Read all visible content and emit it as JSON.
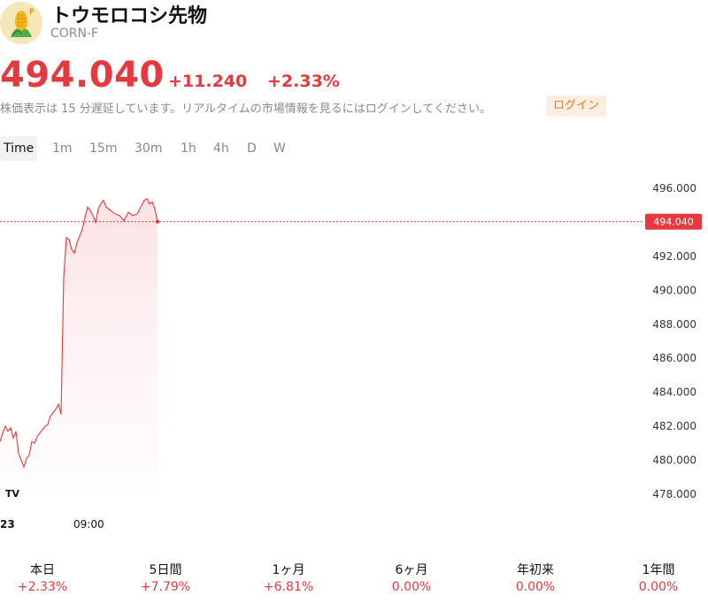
{
  "header": {
    "title": "トウモロコシ先物",
    "symbol": "CORN-F",
    "logo_badge": "F",
    "logo_icon": "corn-icon"
  },
  "quote": {
    "price": "494.040",
    "change": "+11.240",
    "change_pct": "+2.33%",
    "notice": "株価表示は 15 分遅延しています。リアルタイムの市場情報を見るにはログインしてください。",
    "login_label": "ログイン"
  },
  "timeframes": [
    "Time",
    "1m",
    "15m",
    "30m",
    "1h",
    "4h",
    "D",
    "W"
  ],
  "colors": {
    "accent": "#e5393f",
    "login_text": "#ef7a1a",
    "login_bg": "#fdeee2",
    "neutral": "#8a8a8a"
  },
  "chart_data": {
    "type": "line",
    "last_value": "494.040",
    "ylim": [
      476.8,
      497.2
    ],
    "y_ticks": [
      "496.000",
      "492.000",
      "490.000",
      "488.000",
      "486.000",
      "484.000",
      "482.000",
      "480.000",
      "478.000"
    ],
    "x_ticks": [
      "23",
      "09:00"
    ],
    "watermark": "TV",
    "series": [
      {
        "x": [
          0,
          3,
          6,
          9,
          12,
          15,
          18,
          21,
          24,
          27,
          30,
          33,
          36,
          39,
          42,
          45,
          48,
          51,
          54,
          57,
          60,
          63,
          66,
          69,
          72,
          75,
          78,
          81,
          84,
          87,
          90,
          93,
          96,
          99,
          102,
          105,
          108,
          111,
          114,
          117,
          120,
          125,
          130,
          135,
          140,
          145,
          150,
          155,
          160,
          163,
          166,
          169,
          172,
          175,
          178
        ],
        "values": [
          481.1,
          481.6,
          482.0,
          481.7,
          481.9,
          481.3,
          481.7,
          480.4,
          480.0,
          479.6,
          480.1,
          480.3,
          481.1,
          481.0,
          481.4,
          481.6,
          481.8,
          482.0,
          482.1,
          482.6,
          482.8,
          483.0,
          483.3,
          482.7,
          490.8,
          493.1,
          493.0,
          492.4,
          492.2,
          492.8,
          493.2,
          493.6,
          494.3,
          494.9,
          494.7,
          494.4,
          494.0,
          494.8,
          495.1,
          495.3,
          494.9,
          494.7,
          494.5,
          494.4,
          494.1,
          494.6,
          494.4,
          494.5,
          495.0,
          495.3,
          495.4,
          495.1,
          495.2,
          494.8,
          494.04
        ]
      }
    ]
  },
  "performance": [
    {
      "label": "本日",
      "value": "+2.33%"
    },
    {
      "label": "5日間",
      "value": "+7.79%"
    },
    {
      "label": "1ヶ月",
      "value": "+6.81%"
    },
    {
      "label": "6ヶ月",
      "value": "0.00%"
    },
    {
      "label": "年初来",
      "value": "0.00%"
    },
    {
      "label": "1年間",
      "value": "0.00%"
    }
  ]
}
